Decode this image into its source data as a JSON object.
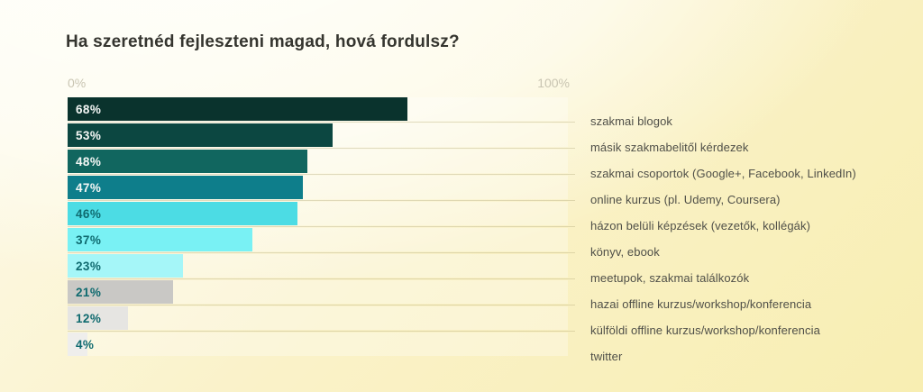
{
  "title": "Ha szeretnéd fejleszteni magad, hová fordulsz?",
  "axis": {
    "min_label": "0%",
    "max_label": "100%"
  },
  "chart_data": {
    "type": "bar",
    "orientation": "horizontal",
    "title": "Ha szeretnéd fejleszteni magad, hová fordulsz?",
    "xlabel": "",
    "ylabel": "",
    "xlim": [
      0,
      100
    ],
    "grid": false,
    "legend": "none",
    "categories": [
      "szakmai blogok",
      "másik szakmabelitől kérdezek",
      "szakmai csoportok (Google+, Facebook, LinkedIn)",
      "online kurzus (pl. Udemy, Coursera)",
      "házon belüli képzések (vezetők, kollégák)",
      "könyv, ebook",
      "meetupok, szakmai találkozók",
      "hazai offline kurzus/workshop/konferencia",
      "külföldi offline kurzus/workshop/konferencia",
      "twitter"
    ],
    "values": [
      68,
      53,
      48,
      47,
      46,
      37,
      23,
      21,
      12,
      4
    ],
    "value_labels": [
      "68%",
      "53%",
      "48%",
      "47%",
      "46%",
      "37%",
      "23%",
      "21%",
      "12%",
      "4%"
    ],
    "bar_colors": [
      "#0a332d",
      "#0c4741",
      "#11665f",
      "#0e7e8b",
      "#4cdce4",
      "#79f1f4",
      "#a5f6f8",
      "#c9c8c5",
      "#e6e5e2",
      "#efeeec"
    ],
    "value_text_colors": [
      "#f4f7f5",
      "#f4f7f5",
      "#f4f7f5",
      "#f4f7f5",
      "#0f6a6f",
      "#0f6a6f",
      "#0f6a6f",
      "#0f6a6f",
      "#0f6a6f",
      "#0f6a6f"
    ]
  },
  "colors": {
    "background_top_left": "#fffffb",
    "background_bottom": "#f8eeb2",
    "title_text": "#35352f",
    "axis_text": "#c9c5b2",
    "category_text": "#4f4f48",
    "separator_line": "#cfc9a8"
  }
}
